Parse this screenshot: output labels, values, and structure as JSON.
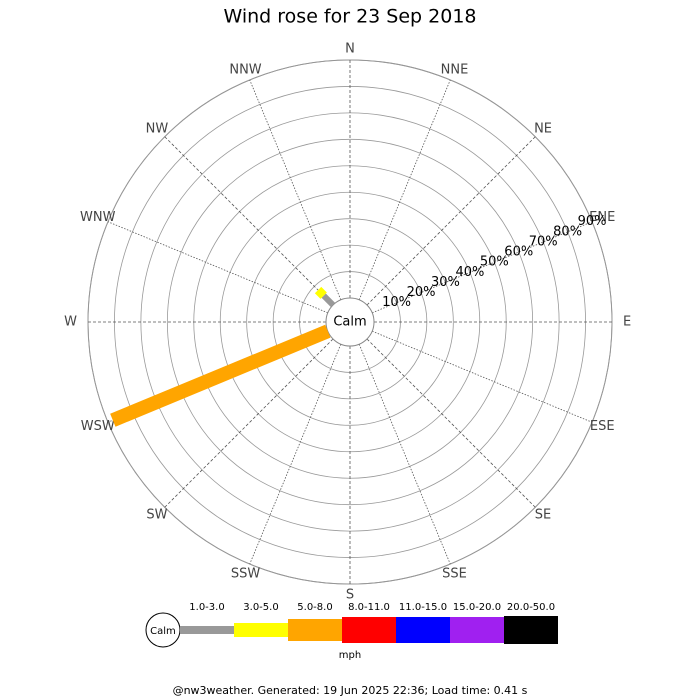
{
  "chart_data": {
    "type": "windrose",
    "title": "Wind rose for 23 Sep 2018",
    "directions": [
      "N",
      "NNE",
      "NE",
      "ENE",
      "E",
      "ESE",
      "SE",
      "SSE",
      "S",
      "SSW",
      "SW",
      "WSW",
      "W",
      "WNW",
      "NW",
      "NNW"
    ],
    "rlim": [
      0,
      90
    ],
    "rticks": [
      {
        "value": 10,
        "label": "10%"
      },
      {
        "value": 20,
        "label": "20%"
      },
      {
        "value": 30,
        "label": "30%"
      },
      {
        "value": 40,
        "label": "40%"
      },
      {
        "value": 50,
        "label": "50%"
      },
      {
        "value": 60,
        "label": "60%"
      },
      {
        "value": 70,
        "label": "70%"
      },
      {
        "value": 80,
        "label": "80%"
      },
      {
        "value": 90,
        "label": "90%"
      }
    ],
    "center_label": "Calm",
    "series": [
      {
        "name": "1.0-3.0",
        "color": "#999999",
        "values": [
          0,
          0,
          0,
          0,
          0,
          0,
          0,
          0,
          0,
          0,
          0,
          0,
          0,
          0,
          5,
          0
        ]
      },
      {
        "name": "3.0-5.0",
        "color": "#ffff00",
        "values": [
          0,
          0,
          0,
          0,
          0,
          0,
          0,
          0,
          0,
          0,
          0,
          0,
          0,
          0,
          3,
          0
        ]
      },
      {
        "name": "5.0-8.0",
        "color": "#ffa500",
        "values": [
          0,
          0,
          0,
          0,
          0,
          0,
          0,
          0,
          0,
          0,
          0,
          88,
          0,
          0,
          0,
          0
        ]
      },
      {
        "name": "8.0-11.0",
        "color": "#ff0000",
        "values": [
          0,
          0,
          0,
          0,
          0,
          0,
          0,
          0,
          0,
          0,
          0,
          0,
          0,
          0,
          0,
          0
        ]
      },
      {
        "name": "11.0-15.0",
        "color": "#0000ff",
        "values": [
          0,
          0,
          0,
          0,
          0,
          0,
          0,
          0,
          0,
          0,
          0,
          0,
          0,
          0,
          0,
          0
        ]
      },
      {
        "name": "15.0-20.0",
        "color": "#a020f0",
        "values": [
          0,
          0,
          0,
          0,
          0,
          0,
          0,
          0,
          0,
          0,
          0,
          0,
          0,
          0,
          0,
          0
        ]
      },
      {
        "name": "20.0-50.0",
        "color": "#000000",
        "values": [
          0,
          0,
          0,
          0,
          0,
          0,
          0,
          0,
          0,
          0,
          0,
          0,
          0,
          0,
          0,
          0
        ]
      }
    ],
    "legend_calm": "Calm",
    "legend_unit": "mph",
    "footer": "@nw3weather. Generated: 19 Jun 2025 22:36; Load time: 0.41 s"
  }
}
